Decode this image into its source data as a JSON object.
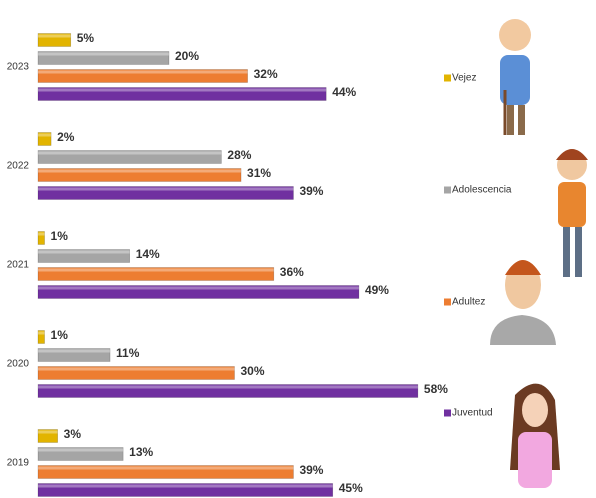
{
  "chart_data": {
    "type": "bar",
    "orientation": "horizontal",
    "categories": [
      "2023",
      "2022",
      "2021",
      "2020",
      "2019"
    ],
    "series": [
      {
        "name": "Vejez",
        "color": "#e2b400",
        "values": [
          5,
          2,
          1,
          1,
          3
        ],
        "value_labels": [
          "5%",
          "2%",
          "1%",
          "1%",
          "3%"
        ]
      },
      {
        "name": "Adolescencia",
        "color": "#a5a5a5",
        "values": [
          20,
          28,
          14,
          11,
          13
        ],
        "value_labels": [
          "20%",
          "28%",
          "14%",
          "11%",
          "13%"
        ]
      },
      {
        "name": "Adultez",
        "color": "#ed7d31",
        "values": [
          32,
          31,
          36,
          30,
          39
        ],
        "value_labels": [
          "32%",
          "31%",
          "36%",
          "30%",
          "39%"
        ]
      },
      {
        "name": "Juventud",
        "color": "#7030a0",
        "values": [
          44,
          39,
          49,
          58,
          45
        ],
        "value_labels": [
          "44%",
          "39%",
          "49%",
          "58%",
          "45%"
        ]
      }
    ]
  }
}
